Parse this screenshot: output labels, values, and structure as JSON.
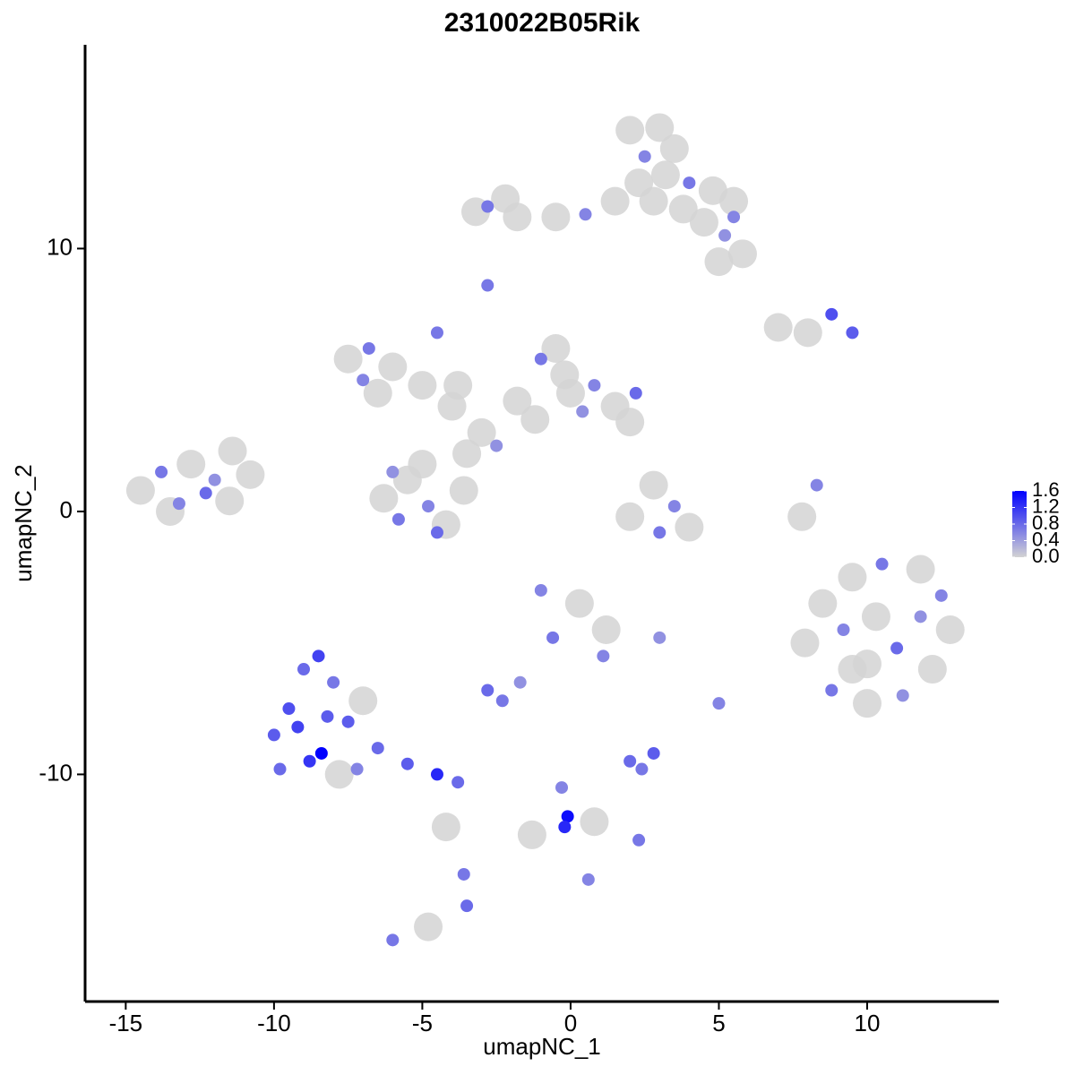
{
  "chart_data": {
    "type": "scatter",
    "title": "2310022B05Rik",
    "x_label": "umapNC_1",
    "y_label": "umapNC_2",
    "xlim": [
      -16.37,
      14.44
    ],
    "ylim": [
      -18.64,
      17.75
    ],
    "xticks": [
      -15,
      -10,
      -5,
      0,
      5,
      10
    ],
    "yticks": [
      -10,
      0,
      10
    ],
    "colors": [
      "#d3d3d3",
      "#0000ff"
    ],
    "color_lim": [
      0,
      1.6
    ],
    "color_ticks": [
      {
        "value": 0,
        "label": "0.0"
      },
      0.4,
      0.8,
      1.2,
      1.6
    ],
    "x": [
      2.0,
      3.0,
      2.5,
      3.5,
      2.3,
      3.2,
      4.0,
      4.8,
      5.5,
      4.5,
      5.2,
      5.8,
      5.0,
      3.8,
      2.8,
      1.5,
      0.5,
      -0.5,
      -1.8,
      -2.8,
      -3.2,
      -2.2,
      5.5,
      -14.5,
      -13.8,
      -13.2,
      -12.8,
      -12.0,
      -11.5,
      -10.8,
      -13.5,
      -12.3,
      -11.4,
      -6.3,
      -5.5,
      -4.8,
      -5.8,
      -4.2,
      -3.6,
      -5.0,
      -4.5,
      -6.0,
      -7.5,
      -6.8,
      -7.0,
      -6.0,
      -5.0,
      -4.0,
      -6.5,
      -3.0,
      -2.5,
      -3.5,
      -4.5,
      -3.8,
      -1.8,
      -1.0,
      -0.5,
      0.0,
      0.8,
      1.5,
      2.2,
      2.0,
      -1.2,
      0.4,
      -0.2,
      2.8,
      3.5,
      4.0,
      3.0,
      2.0,
      -2.8,
      7.0,
      8.0,
      9.5,
      8.8,
      8.3,
      7.8,
      8.5,
      9.5,
      10.5,
      11.8,
      12.5,
      12.8,
      12.2,
      11.2,
      10.0,
      8.8,
      7.9,
      9.2,
      10.3,
      11.0,
      10.0,
      11.8,
      9.5,
      -1.0,
      0.3,
      1.2,
      -0.6,
      1.1,
      -1.7,
      -2.8,
      -2.3,
      2.0,
      2.8,
      2.4,
      5.0,
      -0.3,
      -0.1,
      -0.2,
      0.8,
      2.3,
      0.6,
      -1.3,
      3.0,
      -10.0,
      -9.5,
      -9.0,
      -8.5,
      -8.0,
      -7.5,
      -8.8,
      -9.8,
      -7.2,
      -8.4,
      -7.0,
      -9.2,
      -8.2,
      -6.5,
      -5.5,
      -4.5,
      -3.8,
      -4.2,
      -3.6,
      -3.5,
      -6.0,
      -4.8,
      -7.8
    ],
    "values": [
      14.5,
      14.6,
      13.5,
      13.8,
      12.5,
      12.8,
      12.5,
      12.2,
      11.8,
      11.0,
      10.5,
      9.8,
      9.5,
      11.5,
      11.8,
      11.8,
      11.3,
      11.2,
      11.2,
      11.6,
      11.4,
      11.9,
      11.2,
      0.8,
      1.5,
      0.3,
      1.8,
      1.2,
      0.4,
      1.4,
      0.0,
      0.7,
      2.3,
      0.5,
      1.2,
      0.2,
      -0.3,
      -0.5,
      0.8,
      1.8,
      -0.8,
      1.5,
      5.8,
      6.2,
      5.0,
      5.5,
      4.8,
      4.0,
      4.5,
      3.0,
      2.5,
      2.2,
      6.8,
      4.8,
      4.2,
      5.8,
      6.2,
      4.5,
      4.8,
      4.0,
      4.5,
      3.4,
      3.5,
      3.8,
      5.2,
      1.0,
      0.2,
      -0.6,
      -0.8,
      -0.2,
      8.6,
      7.0,
      6.8,
      6.8,
      7.5,
      1.0,
      -0.2,
      -3.5,
      -2.5,
      -2.0,
      -2.2,
      -3.2,
      -4.5,
      -6.0,
      -7.0,
      -7.3,
      -6.8,
      -5.0,
      -4.5,
      -4.0,
      -5.2,
      -5.8,
      -4.0,
      -6.0,
      -3.0,
      -3.5,
      -4.5,
      -4.8,
      -5.5,
      -6.5,
      -6.8,
      -7.2,
      -9.5,
      -9.2,
      -9.8,
      -7.3,
      -10.5,
      -11.6,
      -12.0,
      -11.8,
      -12.5,
      -14.0,
      -12.3,
      -4.8,
      -8.5,
      -7.5,
      -6.0,
      -5.5,
      -6.5,
      -8.0,
      -9.5,
      -9.8,
      -9.8,
      -9.2,
      -7.2,
      -8.2,
      -7.8,
      -9.0,
      -9.6,
      -10.0,
      -10.3,
      -12.0,
      -13.8,
      -15.0,
      -16.3,
      -15.8,
      -10.0
    ],
    "expression": [
      0,
      0,
      0.6,
      0,
      0,
      0,
      0.7,
      0,
      0,
      0,
      0.5,
      0,
      0,
      0,
      0,
      0,
      0.6,
      0,
      0,
      0.7,
      0,
      0,
      0.6,
      0,
      0.7,
      0.6,
      0,
      0.5,
      0,
      0,
      0,
      0.8,
      0,
      0,
      0,
      0.6,
      0.7,
      0,
      0,
      0,
      0.8,
      0.5,
      0,
      0.7,
      0.6,
      0,
      0,
      0,
      0,
      0,
      0.5,
      0,
      0.7,
      0,
      0,
      0.7,
      0,
      0,
      0.6,
      0,
      0.8,
      0,
      0,
      0.5,
      0,
      0,
      0.6,
      0,
      0.7,
      0,
      0.7,
      0,
      0,
      0.9,
      1.0,
      0.6,
      0,
      0,
      0,
      0.7,
      0,
      0.6,
      0,
      0,
      0.5,
      0,
      0.7,
      0,
      0.6,
      0,
      0.8,
      0,
      0.5,
      0,
      0.6,
      0,
      0,
      0.7,
      0.6,
      0.5,
      0.8,
      0.7,
      0.8,
      0.9,
      0.7,
      0.6,
      0.6,
      1.5,
      1.3,
      0,
      0.7,
      0.6,
      0,
      0.5,
      0.9,
      1.0,
      0.8,
      1.1,
      0.7,
      0.9,
      1.2,
      0.8,
      0.6,
      1.6,
      0,
      1.1,
      0.9,
      0.8,
      0.9,
      1.3,
      0.8,
      0,
      0.7,
      0.8,
      0.7,
      0,
      0
    ]
  }
}
